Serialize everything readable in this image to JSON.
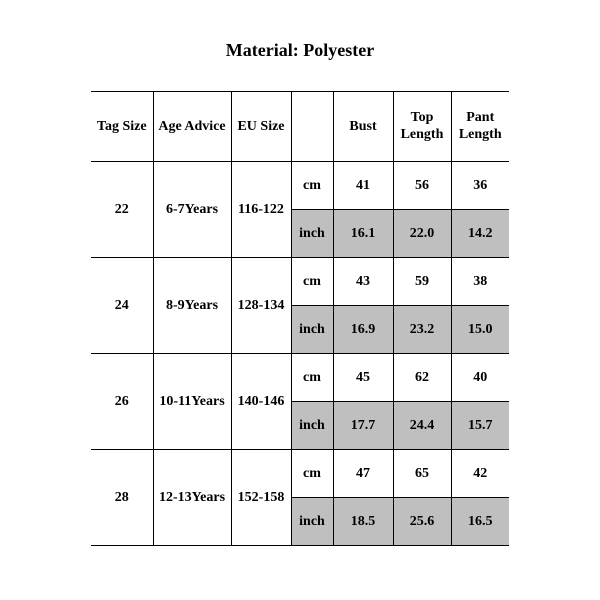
{
  "title": "Material: Polyester",
  "colors": {
    "background": "#ffffff",
    "text": "#000000",
    "border": "#000000",
    "shade": "#bfbfbf"
  },
  "fonts": {
    "family": "Times New Roman",
    "title_size_pt": 14,
    "cell_size_pt": 11,
    "weight": "bold"
  },
  "table": {
    "columns": [
      "Tag Size",
      "Age Advice",
      "EU Size",
      "",
      "Bust",
      "Top Length",
      "Pant Length"
    ],
    "unit_labels": {
      "cm": "cm",
      "inch": "inch"
    },
    "rows": [
      {
        "tag": "22",
        "age": "6-7Years",
        "eu": "116-122",
        "cm": {
          "bust": "41",
          "top": "56",
          "pant": "36"
        },
        "inch": {
          "bust": "16.1",
          "top": "22.0",
          "pant": "14.2"
        }
      },
      {
        "tag": "24",
        "age": "8-9Years",
        "eu": "128-134",
        "cm": {
          "bust": "43",
          "top": "59",
          "pant": "38"
        },
        "inch": {
          "bust": "16.9",
          "top": "23.2",
          "pant": "15.0"
        }
      },
      {
        "tag": "26",
        "age": "10-11Years",
        "eu": "140-146",
        "cm": {
          "bust": "45",
          "top": "62",
          "pant": "40"
        },
        "inch": {
          "bust": "17.7",
          "top": "24.4",
          "pant": "15.7"
        }
      },
      {
        "tag": "28",
        "age": "12-13Years",
        "eu": "152-158",
        "cm": {
          "bust": "47",
          "top": "65",
          "pant": "42"
        },
        "inch": {
          "bust": "18.5",
          "top": "25.6",
          "pant": "16.5"
        }
      }
    ]
  }
}
